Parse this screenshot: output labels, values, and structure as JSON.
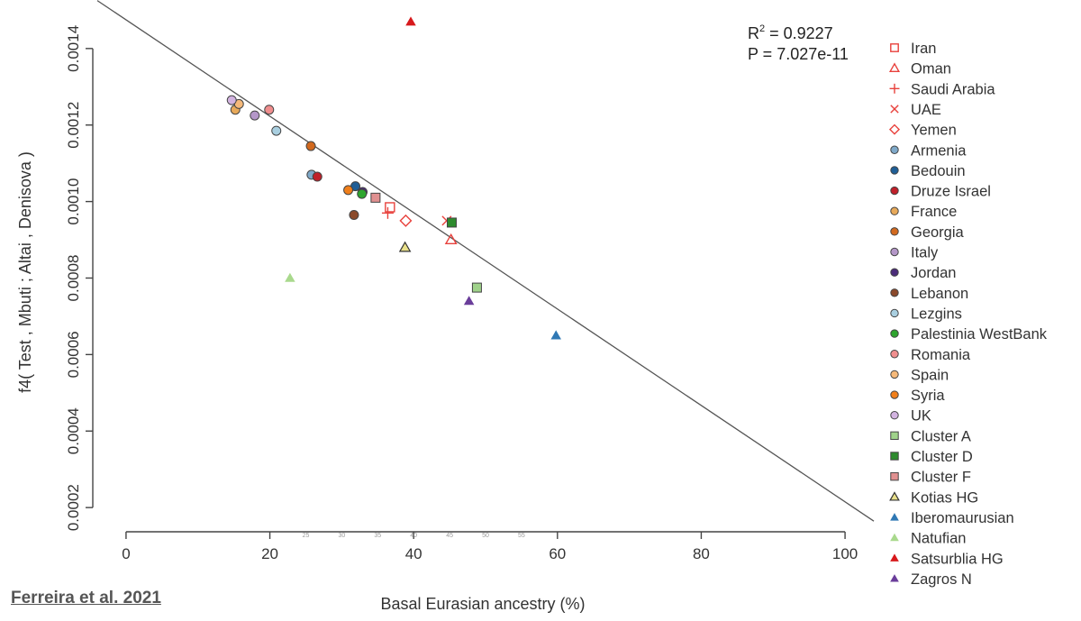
{
  "citation": "Ferreira et al. 2021",
  "chart_data": {
    "type": "scatter",
    "title": "",
    "xlabel": "Basal Eurasian ancestry (%)",
    "ylabel": "f4( Test , Mbuti ; Altai , Denisova )",
    "xlim": [
      -4,
      104
    ],
    "ylim": [
      0.000165,
      0.001475
    ],
    "xticks": [
      0,
      20,
      40,
      60,
      80,
      100
    ],
    "yticks": [
      0.0002,
      0.0004,
      0.0006,
      0.0008,
      0.001,
      0.0012,
      0.0014
    ],
    "ytick_labels": [
      "0.0002",
      "0.0004",
      "0.0006",
      "0.0008",
      "0.0010",
      "0.0012",
      "0.0014"
    ],
    "faint_x_labels": [
      "25",
      "30",
      "35",
      "40",
      "45",
      "50",
      "55"
    ],
    "stats": {
      "r2_prefix": "R",
      "r2_value": " = 0.9227",
      "p_text": "P = 7.027e-11"
    },
    "regression_line": {
      "intercept": 0.001475,
      "slope": -1.26e-05
    },
    "legend_position": "right",
    "grid": false,
    "series": [
      {
        "name": "Iran",
        "marker": "square-open",
        "color": "#e8413c",
        "points": [
          [
            36.7,
            0.000985
          ]
        ]
      },
      {
        "name": "Oman",
        "marker": "triangle-open",
        "color": "#e8413c",
        "points": [
          [
            45.2,
            0.0009
          ]
        ]
      },
      {
        "name": "Saudi Arabia",
        "marker": "plus",
        "color": "#e8413c",
        "points": [
          [
            36.4,
            0.00097
          ]
        ]
      },
      {
        "name": "UAE",
        "marker": "cross",
        "color": "#e8413c",
        "points": [
          [
            44.6,
            0.00095
          ]
        ]
      },
      {
        "name": "Yemen",
        "marker": "diamond-open",
        "color": "#e8413c",
        "points": [
          [
            38.9,
            0.00095
          ]
        ]
      },
      {
        "name": "Armenia",
        "marker": "circle",
        "color": "#7fa9c9",
        "points": [
          [
            25.8,
            0.00107
          ]
        ]
      },
      {
        "name": "Bedouin",
        "marker": "circle",
        "color": "#1f5e96",
        "points": [
          [
            31.9,
            0.00104
          ]
        ]
      },
      {
        "name": "Druze Israel",
        "marker": "circle",
        "color": "#c0202a",
        "points": [
          [
            26.6,
            0.001065
          ]
        ]
      },
      {
        "name": "France",
        "marker": "circle",
        "color": "#e7a95a",
        "points": [
          [
            15.2,
            0.00124
          ]
        ]
      },
      {
        "name": "Georgia",
        "marker": "circle",
        "color": "#d2691e",
        "points": [
          [
            25.7,
            0.001145
          ]
        ]
      },
      {
        "name": "Italy",
        "marker": "circle",
        "color": "#b497c8",
        "points": [
          [
            17.9,
            0.001225
          ]
        ]
      },
      {
        "name": "Jordan",
        "marker": "circle",
        "color": "#4b2c7a",
        "points": [
          [
            32.9,
            0.001025
          ]
        ]
      },
      {
        "name": "Lebanon",
        "marker": "circle",
        "color": "#8b4a2b",
        "points": [
          [
            31.7,
            0.000965
          ]
        ]
      },
      {
        "name": "Lezgins",
        "marker": "circle",
        "color": "#a9cfe0",
        "points": [
          [
            20.9,
            0.001185
          ]
        ]
      },
      {
        "name": "Palestinia WestBank",
        "marker": "circle",
        "color": "#2ea52e",
        "points": [
          [
            32.8,
            0.00102
          ]
        ]
      },
      {
        "name": "Romania",
        "marker": "circle",
        "color": "#f08e8e",
        "points": [
          [
            19.9,
            0.00124
          ]
        ]
      },
      {
        "name": "Spain",
        "marker": "circle",
        "color": "#f5b97a",
        "points": [
          [
            15.7,
            0.001255
          ]
        ]
      },
      {
        "name": "Syria",
        "marker": "circle",
        "color": "#f07f1a",
        "points": [
          [
            30.9,
            0.00103
          ]
        ]
      },
      {
        "name": "UK",
        "marker": "circle",
        "color": "#d2b3e0",
        "points": [
          [
            14.7,
            0.001265
          ]
        ]
      },
      {
        "name": "Cluster A",
        "marker": "square",
        "color": "#9fd28a",
        "points": [
          [
            48.8,
            0.000775
          ]
        ]
      },
      {
        "name": "Cluster D",
        "marker": "square",
        "color": "#2e8b2e",
        "points": [
          [
            45.3,
            0.000945
          ]
        ]
      },
      {
        "name": "Cluster F",
        "marker": "square",
        "color": "#e09090",
        "points": [
          [
            34.7,
            0.00101
          ]
        ]
      },
      {
        "name": "Kotias HG",
        "marker": "triangle",
        "color": "#e9e08a",
        "points": [
          [
            38.8,
            0.00088
          ]
        ]
      },
      {
        "name": "Iberomaurusian",
        "marker": "triangle",
        "color": "#2f78b4",
        "points": [
          [
            59.8,
            0.00065
          ]
        ]
      },
      {
        "name": "Natufian",
        "marker": "triangle",
        "color": "#a9d98d",
        "points": [
          [
            22.8,
            0.0008
          ]
        ]
      },
      {
        "name": "Satsurblia HG",
        "marker": "triangle",
        "color": "#d7191c",
        "points": [
          [
            39.6,
            0.00147
          ]
        ]
      },
      {
        "name": "Zagros N",
        "marker": "triangle",
        "color": "#6a3d9a",
        "points": [
          [
            47.7,
            0.00074
          ]
        ]
      }
    ]
  }
}
